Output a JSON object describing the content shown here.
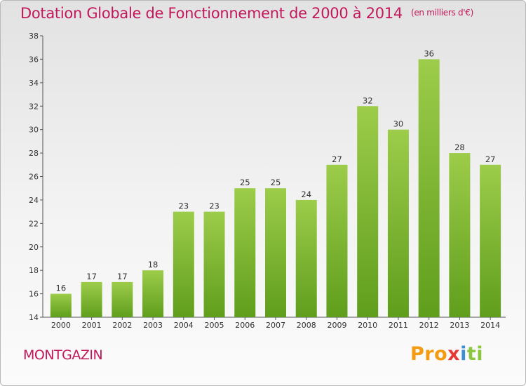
{
  "title": "Dotation Globale de Fonctionnement de 2000 à 2014",
  "unit": "(en milliers d'€)",
  "commune": "MONTGAZIN",
  "logo": {
    "part1": "Pro",
    "part2": "x",
    "part3": "i",
    "part4": "ti"
  },
  "colors": {
    "title": "#c2185b",
    "bar_light": "#9ccc4a",
    "bar_dark": "#5f9e1c"
  },
  "chart_data": {
    "type": "bar",
    "categories": [
      "2000",
      "2001",
      "2002",
      "2003",
      "2004",
      "2005",
      "2006",
      "2007",
      "2008",
      "2009",
      "2010",
      "2011",
      "2012",
      "2013",
      "2014"
    ],
    "values": [
      16,
      17,
      17,
      18,
      23,
      23,
      25,
      25,
      24,
      27,
      32,
      30,
      36,
      28,
      27
    ],
    "ylim": [
      14,
      38
    ],
    "yticks": [
      14,
      16,
      18,
      20,
      22,
      24,
      26,
      28,
      30,
      32,
      34,
      36,
      38
    ],
    "grid": false,
    "title": "Dotation Globale de Fonctionnement de 2000 à 2014",
    "ylabel": "",
    "xlabel": ""
  }
}
